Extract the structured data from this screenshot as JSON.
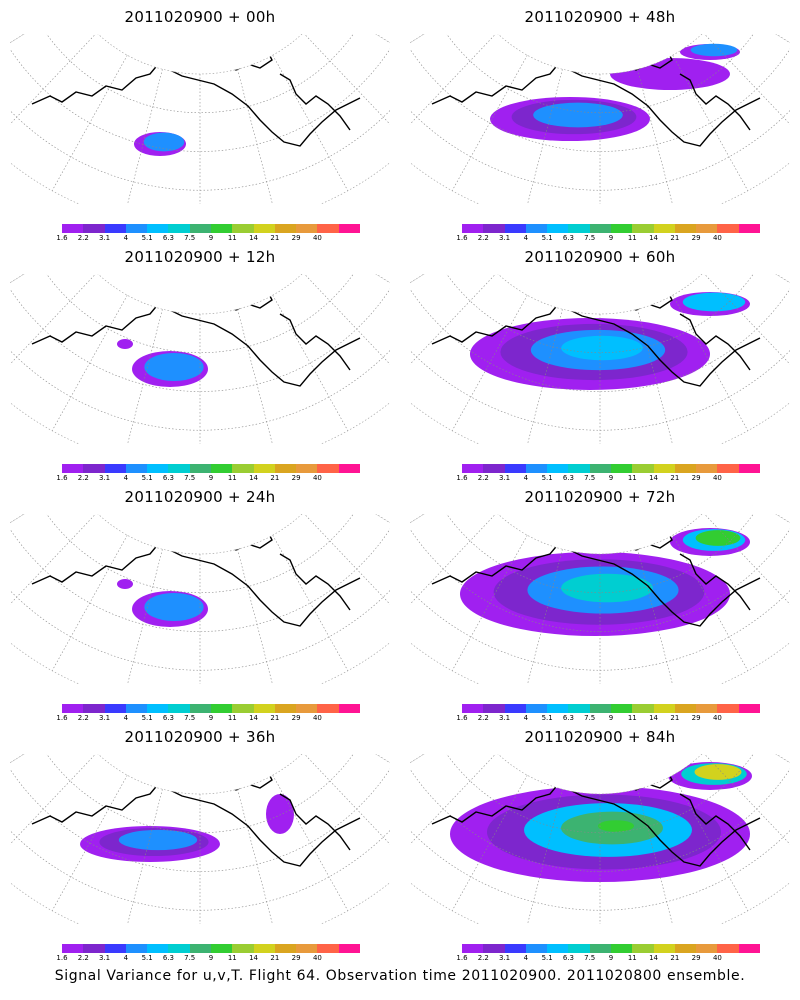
{
  "caption": "Signal Variance for u,v,T. Flight 64. Observation time 2011020900. 2011020800 ensemble.",
  "colorbar": {
    "labels": [
      "1.6",
      "2.2",
      "3.1",
      "4",
      "5.1",
      "6.3",
      "7.5",
      "9",
      "11",
      "14",
      "21",
      "29",
      "40"
    ],
    "colors": [
      "#a020f0",
      "#7d26cd",
      "#3a3aff",
      "#1e90ff",
      "#00bfff",
      "#00ced1",
      "#3cb371",
      "#32cd32",
      "#9acd32",
      "#d2d21e",
      "#daa520",
      "#e89a3c",
      "#ff6347",
      "#ff1493"
    ]
  },
  "panels": [
    {
      "title": "2011020900 + 00h",
      "level": 1
    },
    {
      "title": "2011020900 + 48h",
      "level": 4
    },
    {
      "title": "2011020900 + 12h",
      "level": 2
    },
    {
      "title": "2011020900 + 60h",
      "level": 5
    },
    {
      "title": "2011020900 + 24h",
      "level": 2
    },
    {
      "title": "2011020900 + 72h",
      "level": 6
    },
    {
      "title": "2011020900 + 36h",
      "level": 3
    },
    {
      "title": "2011020900 + 84h",
      "level": 7
    }
  ]
}
